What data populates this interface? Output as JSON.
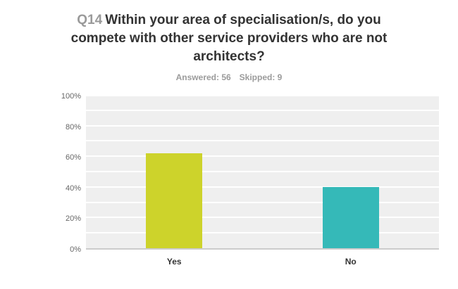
{
  "header": {
    "question_number": "Q14",
    "question_text": "Within your area of specialisation/s, do you compete with other service providers who are not architects?",
    "answered": "Answered: 56",
    "skipped": "Skipped: 9"
  },
  "chart_data": {
    "type": "bar",
    "categories": [
      "Yes",
      "No"
    ],
    "values": [
      62,
      40
    ],
    "series_colors": [
      "#cdd32b",
      "#35b9b8"
    ],
    "title": "Q14 Within your area of specialisation/s, do you compete with other service providers who are not architects?",
    "xlabel": "",
    "ylabel": "",
    "ylim": [
      0,
      100
    ],
    "y_tick_labels": [
      "0%",
      "20%",
      "40%",
      "60%",
      "80%",
      "100%"
    ],
    "y_tick_interval_pct": 20,
    "gridline_interval_pct": 10,
    "grid": "on",
    "legend": "off",
    "plot_background": "#efefef",
    "gridline_color": "#ffffff",
    "axis_line_color": "#cccccc"
  }
}
